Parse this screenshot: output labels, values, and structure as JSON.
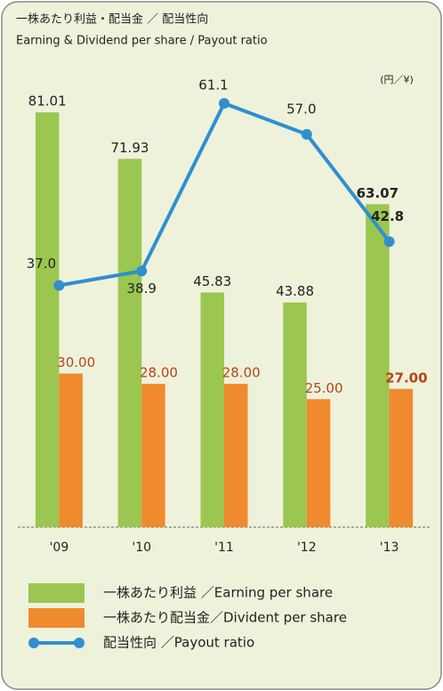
{
  "chart_data": {
    "type": "bar-line",
    "title": "一株あたり利益・配当金 ／ 配当性向",
    "subtitle": "Earning & Dividend per share / Payout ratio",
    "unit_label": "(円／¥)",
    "categories": [
      "'09",
      "'10",
      "'11",
      "'12",
      "'13"
    ],
    "ylim": [
      0,
      90
    ],
    "y2lim": [
      5,
      66
    ],
    "series": [
      {
        "name": "一株あたり利益 ／Earning per share",
        "type": "bar",
        "color": "#9bc650",
        "values": [
          81.01,
          71.93,
          45.83,
          43.88,
          63.07
        ]
      },
      {
        "name": "一株あたり配当金／Divident per share",
        "type": "bar",
        "color": "#f08a2e",
        "values": [
          30.0,
          28.0,
          28.0,
          25.0,
          27.0
        ],
        "value_labels": [
          "30.00",
          "28.00",
          "28.00",
          "25.00",
          "27.00"
        ]
      },
      {
        "name": "配当性向 ／Payout ratio",
        "type": "line",
        "axis": "y2",
        "color": "#2f8fd0",
        "values": [
          37.0,
          38.9,
          61.1,
          57.0,
          42.8
        ],
        "value_labels": [
          "37.0",
          "38.9",
          "61.1",
          "57.0",
          "42.8"
        ]
      }
    ]
  }
}
